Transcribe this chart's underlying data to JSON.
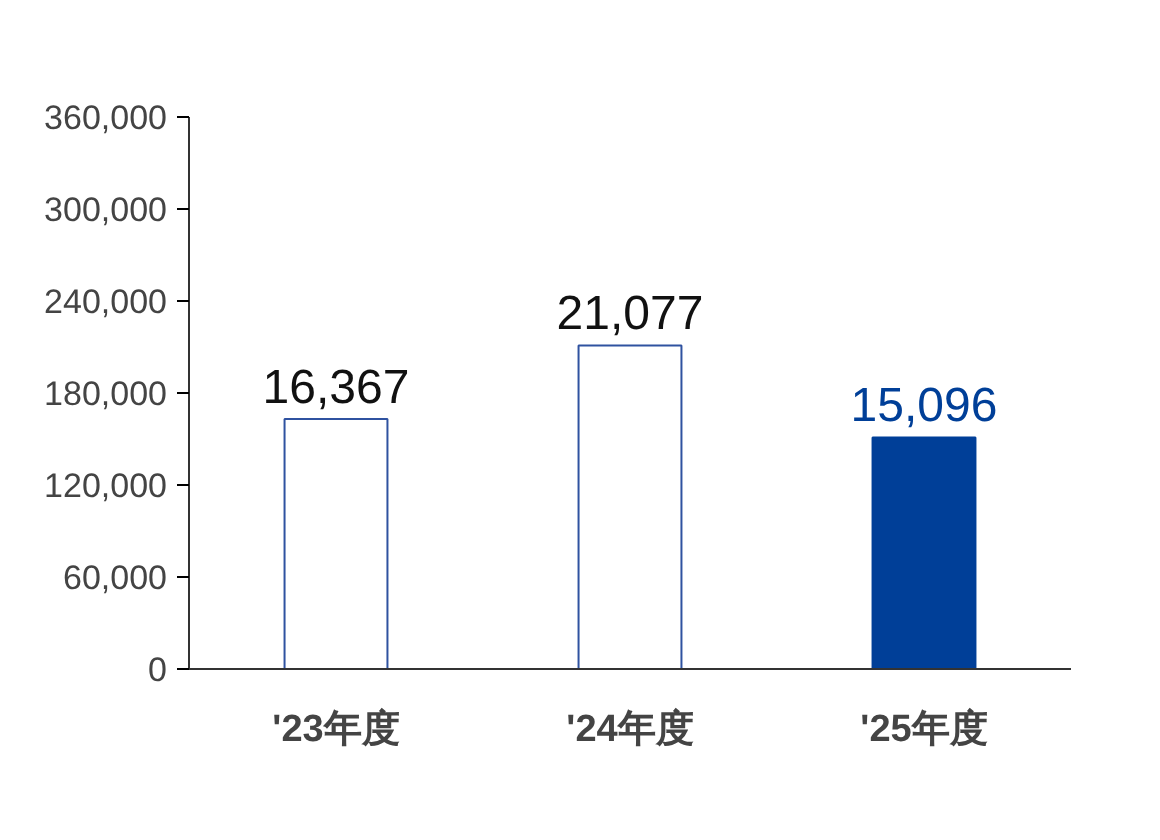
{
  "chart_data": {
    "type": "bar",
    "categories": [
      "'23年度",
      "'24年度",
      "'25年度"
    ],
    "values": [
      163000,
      211000,
      151000
    ],
    "colors": [
      "#ffffff",
      "#ffffff",
      "#003f98"
    ],
    "annotations": [
      {
        "text": "16,367",
        "x": "'23年度",
        "y": 163000
      },
      {
        "text": "21,077",
        "x": "'24年度",
        "y": 211000
      },
      {
        "text": "15,096",
        "x": "'25年度",
        "y": 151000
      }
    ],
    "ylim": [
      0,
      360000
    ],
    "yticks": [
      {
        "value": 0,
        "label": "0"
      },
      {
        "value": 60000,
        "label": "60,000"
      },
      {
        "value": 120000,
        "label": "120,000"
      },
      {
        "value": 180000,
        "label": "180,000"
      },
      {
        "value": 240000,
        "label": "240,000"
      },
      {
        "value": 300000,
        "label": "300,000"
      },
      {
        "value": 360000,
        "label": "360,000"
      }
    ],
    "grid": false
  }
}
